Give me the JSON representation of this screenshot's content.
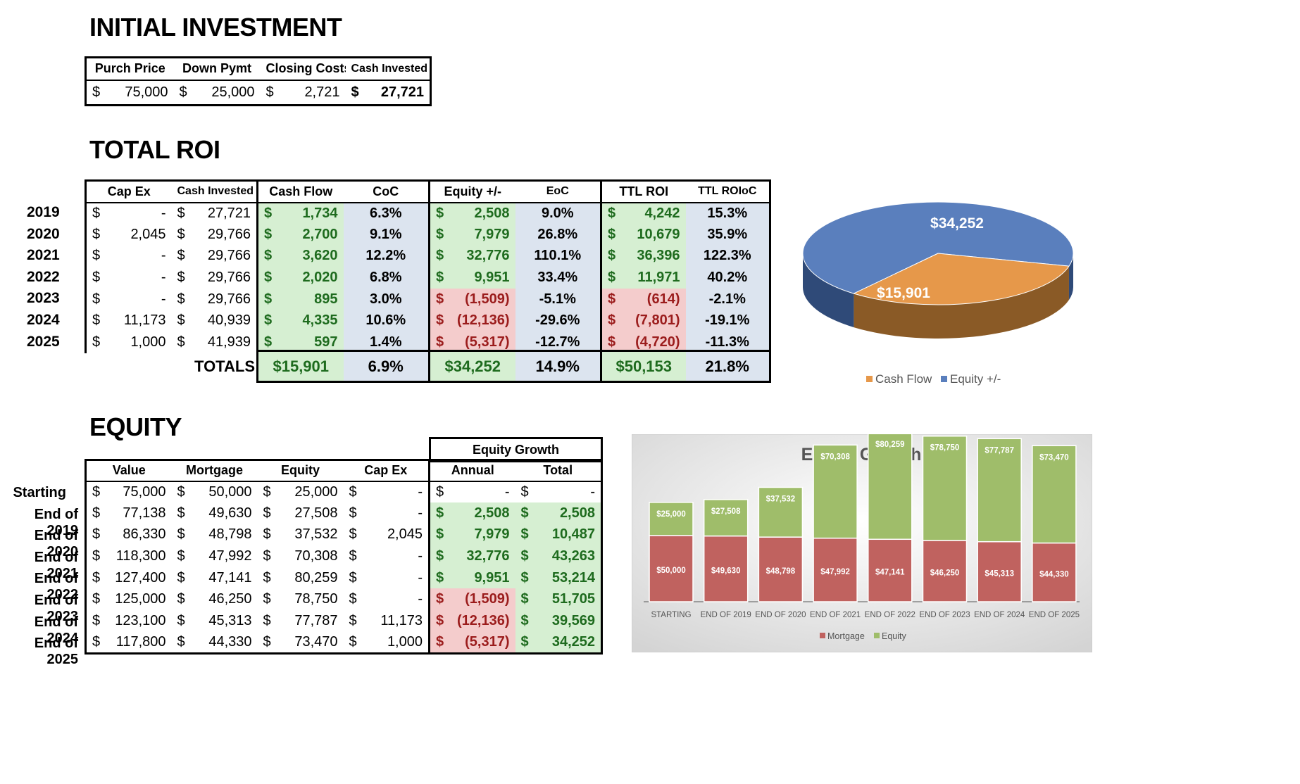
{
  "initial_investment": {
    "title": "INITIAL INVESTMENT",
    "headers": [
      "Purch Price",
      "Down Pymt",
      "Closing Costs",
      "Cash Invested"
    ],
    "currency": "$",
    "values": [
      "75,000",
      "25,000",
      "2,721",
      "27,721"
    ]
  },
  "total_roi": {
    "title": "TOTAL ROI",
    "headers": {
      "cap_ex": "Cap Ex",
      "cash_invested": "Cash Invested",
      "cash_flow": "Cash Flow",
      "coc": "CoC",
      "equity": "Equity +/-",
      "eoc": "EoC",
      "ttl_roi": "TTL ROI",
      "ttl_roioc": "TTL ROIoC"
    },
    "rows": [
      {
        "year": "2019",
        "cap_ex": "-",
        "cash_invested": "27,721",
        "cash_flow": "1,734",
        "coc": "6.3%",
        "equity": "2,508",
        "eoc": "9.0%",
        "ttl_roi": "4,242",
        "ttl_roioc": "15.3%",
        "equity_neg": false,
        "roi_neg": false
      },
      {
        "year": "2020",
        "cap_ex": "2,045",
        "cash_invested": "29,766",
        "cash_flow": "2,700",
        "coc": "9.1%",
        "equity": "7,979",
        "eoc": "26.8%",
        "ttl_roi": "10,679",
        "ttl_roioc": "35.9%",
        "equity_neg": false,
        "roi_neg": false
      },
      {
        "year": "2021",
        "cap_ex": "-",
        "cash_invested": "29,766",
        "cash_flow": "3,620",
        "coc": "12.2%",
        "equity": "32,776",
        "eoc": "110.1%",
        "ttl_roi": "36,396",
        "ttl_roioc": "122.3%",
        "equity_neg": false,
        "roi_neg": false
      },
      {
        "year": "2022",
        "cap_ex": "-",
        "cash_invested": "29,766",
        "cash_flow": "2,020",
        "coc": "6.8%",
        "equity": "9,951",
        "eoc": "33.4%",
        "ttl_roi": "11,971",
        "ttl_roioc": "40.2%",
        "equity_neg": false,
        "roi_neg": false
      },
      {
        "year": "2023",
        "cap_ex": "-",
        "cash_invested": "29,766",
        "cash_flow": "895",
        "coc": "3.0%",
        "equity": "(1,509)",
        "eoc": "-5.1%",
        "ttl_roi": "(614)",
        "ttl_roioc": "-2.1%",
        "equity_neg": true,
        "roi_neg": true
      },
      {
        "year": "2024",
        "cap_ex": "11,173",
        "cash_invested": "40,939",
        "cash_flow": "4,335",
        "coc": "10.6%",
        "equity": "(12,136)",
        "eoc": "-29.6%",
        "ttl_roi": "(7,801)",
        "ttl_roioc": "-19.1%",
        "equity_neg": true,
        "roi_neg": true
      },
      {
        "year": "2025",
        "cap_ex": "1,000",
        "cash_invested": "41,939",
        "cash_flow": "597",
        "coc": "1.4%",
        "equity": "(5,317)",
        "eoc": "-12.7%",
        "ttl_roi": "(4,720)",
        "ttl_roioc": "-11.3%",
        "equity_neg": true,
        "roi_neg": true
      }
    ],
    "totals": {
      "label": "TOTALS",
      "cash_flow": "$15,901",
      "coc": "6.9%",
      "equity": "$34,252",
      "eoc": "14.9%",
      "ttl_roi": "$50,153",
      "ttl_roioc": "21.8%"
    }
  },
  "equity": {
    "title": "EQUITY",
    "group_header": "Equity Growth",
    "headers": {
      "value": "Value",
      "mortgage": "Mortgage",
      "equity": "Equity",
      "cap_ex": "Cap Ex",
      "annual": "Annual",
      "total": "Total"
    },
    "rows": [
      {
        "label": "Starting",
        "value": "75,000",
        "mortgage": "50,000",
        "equity": "25,000",
        "cap_ex": "-",
        "annual": "-",
        "total": "-",
        "neg": false,
        "blank": true
      },
      {
        "label": "End of 2019",
        "value": "77,138",
        "mortgage": "49,630",
        "equity": "27,508",
        "cap_ex": "-",
        "annual": "2,508",
        "total": "2,508",
        "neg": false,
        "blank": false
      },
      {
        "label": "End of 2020",
        "value": "86,330",
        "mortgage": "48,798",
        "equity": "37,532",
        "cap_ex": "2,045",
        "annual": "7,979",
        "total": "10,487",
        "neg": false,
        "blank": false
      },
      {
        "label": "End of 2021",
        "value": "118,300",
        "mortgage": "47,992",
        "equity": "70,308",
        "cap_ex": "-",
        "annual": "32,776",
        "total": "43,263",
        "neg": false,
        "blank": false
      },
      {
        "label": "End of 2022",
        "value": "127,400",
        "mortgage": "47,141",
        "equity": "80,259",
        "cap_ex": "-",
        "annual": "9,951",
        "total": "53,214",
        "neg": false,
        "blank": false
      },
      {
        "label": "End of 2023",
        "value": "125,000",
        "mortgage": "46,250",
        "equity": "78,750",
        "cap_ex": "-",
        "annual": "(1,509)",
        "total": "51,705",
        "neg": true,
        "blank": false
      },
      {
        "label": "End of 2024",
        "value": "123,100",
        "mortgage": "45,313",
        "equity": "77,787",
        "cap_ex": "11,173",
        "annual": "(12,136)",
        "total": "39,569",
        "neg": true,
        "blank": false
      },
      {
        "label": "End of 2025",
        "value": "117,800",
        "mortgage": "44,330",
        "equity": "73,470",
        "cap_ex": "1,000",
        "annual": "(5,317)",
        "total": "34,252",
        "neg": true,
        "blank": false
      }
    ]
  },
  "chart_data": [
    {
      "type": "pie",
      "title": "",
      "labels": [
        "Cash Flow",
        "Equity +/-"
      ],
      "values": [
        15901,
        34252
      ],
      "data_labels": [
        "$15,901",
        "$34,252"
      ],
      "colors": [
        "#e6984a",
        "#5a7fbd"
      ],
      "legend": "bottom"
    },
    {
      "type": "bar",
      "stacked": true,
      "title": "Equity Growth",
      "categories": [
        "STARTING",
        "END OF 2019",
        "END OF 2020",
        "END OF 2021",
        "END OF 2022",
        "END OF 2023",
        "END OF 2024",
        "END OF 2025"
      ],
      "series": [
        {
          "name": "Mortgage",
          "color": "#c0625f",
          "values": [
            50000,
            49630,
            48798,
            47992,
            47141,
            46250,
            45313,
            44330
          ],
          "labels": [
            "$50,000",
            "$49,630",
            "$48,798",
            "$47,992",
            "$47,141",
            "$46,250",
            "$45,313",
            "$44,330"
          ]
        },
        {
          "name": "Equity",
          "color": "#9fbd6a",
          "values": [
            25000,
            27508,
            37532,
            70308,
            80259,
            78750,
            77787,
            73470
          ],
          "labels": [
            "$25,000",
            "$27,508",
            "$37,532",
            "$70,308",
            "$80,259",
            "$78,750",
            "$77,787",
            "$73,470"
          ]
        }
      ],
      "ylim": [
        0,
        140000
      ],
      "legend": "bottom"
    }
  ]
}
